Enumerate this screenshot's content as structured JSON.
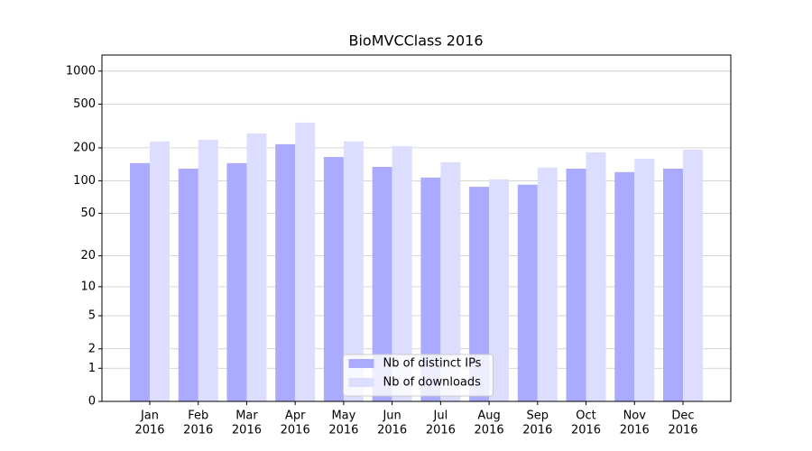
{
  "chart_data": {
    "type": "bar",
    "title": "BioMVCClass 2016",
    "categories": [
      [
        "Jan",
        "2016"
      ],
      [
        "Feb",
        "2016"
      ],
      [
        "Mar",
        "2016"
      ],
      [
        "Apr",
        "2016"
      ],
      [
        "May",
        "2016"
      ],
      [
        "Jun",
        "2016"
      ],
      [
        "Jul",
        "2016"
      ],
      [
        "Aug",
        "2016"
      ],
      [
        "Sep",
        "2016"
      ],
      [
        "Oct",
        "2016"
      ],
      [
        "Nov",
        "2016"
      ],
      [
        "Dec",
        "2016"
      ]
    ],
    "series": [
      {
        "name": "Nb of distinct IPs",
        "color": "#aaaaff",
        "values": [
          145,
          129,
          145,
          216,
          165,
          134,
          107,
          88,
          92,
          129,
          120,
          129
        ]
      },
      {
        "name": "Nb of downloads",
        "color": "#ddddff",
        "values": [
          229,
          237,
          271,
          340,
          229,
          208,
          148,
          103,
          132,
          182,
          159,
          193
        ]
      }
    ],
    "yscale": "symlog",
    "ylim": [
      0,
      1400
    ],
    "yticks": [
      0,
      1,
      2,
      5,
      10,
      20,
      50,
      100,
      200,
      500,
      1000
    ],
    "grid": true,
    "legend": "lower center"
  }
}
